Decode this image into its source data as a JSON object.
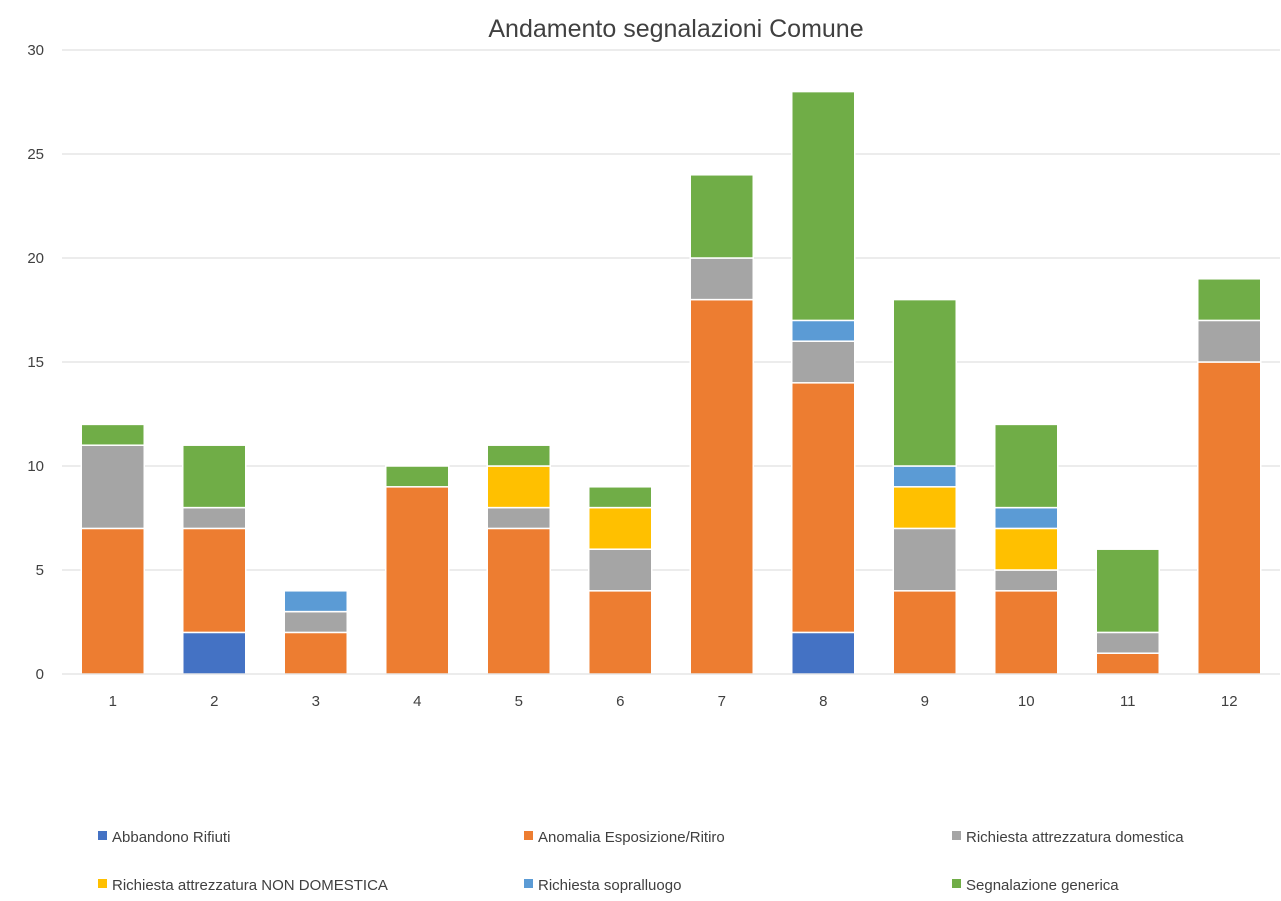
{
  "chart_data": {
    "type": "bar",
    "stacked": true,
    "title": "Andamento segnalazioni Comune",
    "xlabel": "",
    "ylabel": "",
    "ylim": [
      0,
      30
    ],
    "yticks": [
      0,
      5,
      10,
      15,
      20,
      25,
      30
    ],
    "grid": true,
    "legend_position": "bottom",
    "categories": [
      "1",
      "2",
      "3",
      "4",
      "5",
      "6",
      "7",
      "8",
      "9",
      "10",
      "11",
      "12"
    ],
    "series": [
      {
        "name": "Abbandono Rifiuti",
        "color": "#4472c4",
        "values": [
          0,
          2,
          0,
          0,
          0,
          0,
          0,
          2,
          0,
          0,
          0,
          0
        ]
      },
      {
        "name": "Anomalia Esposizione/Ritiro",
        "color": "#ed7d31",
        "values": [
          7,
          5,
          2,
          9,
          7,
          4,
          18,
          12,
          4,
          4,
          1,
          15
        ]
      },
      {
        "name": "Richiesta attrezzatura domestica",
        "color": "#a5a5a5",
        "values": [
          4,
          1,
          1,
          0,
          1,
          2,
          2,
          2,
          3,
          1,
          1,
          2
        ]
      },
      {
        "name": "Richiesta attrezzatura NON DOMESTICA",
        "color": "#ffc000",
        "values": [
          0,
          0,
          0,
          0,
          2,
          2,
          0,
          0,
          2,
          2,
          0,
          0
        ]
      },
      {
        "name": "Richiesta sopralluogo",
        "color": "#5b9bd5",
        "values": [
          0,
          0,
          1,
          0,
          0,
          0,
          0,
          1,
          1,
          1,
          0,
          0
        ]
      },
      {
        "name": "Segnalazione generica",
        "color": "#70ad47",
        "values": [
          1,
          3,
          0,
          1,
          1,
          1,
          4,
          11,
          8,
          4,
          4,
          2
        ]
      }
    ]
  }
}
